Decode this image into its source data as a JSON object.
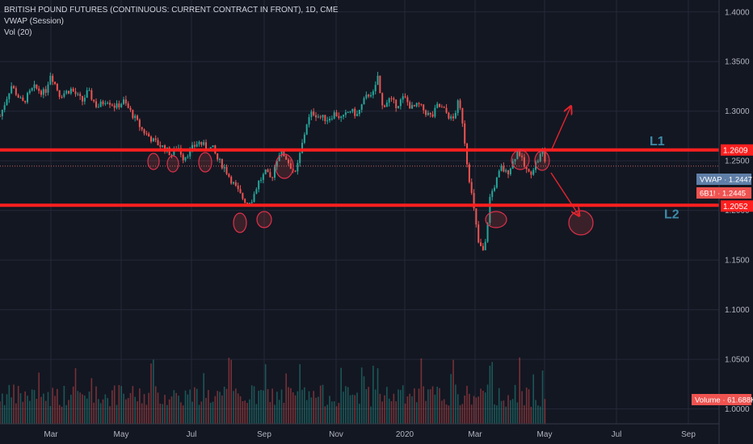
{
  "legend": {
    "title": "BRITISH POUND FUTURES (CONTINUOUS: CURRENT CONTRACT IN FRONT), 1D, CME",
    "indicator1": "VWAP (Session)",
    "indicator2": "Vol (20)"
  },
  "chart_data": {
    "type": "candlestick",
    "y_axis": {
      "ticks": [
        "1.4000",
        "1.3500",
        "1.3000",
        "1.2500",
        "1.2000",
        "1.1500",
        "1.1000",
        "1.0500",
        "1.0000"
      ],
      "range": [
        0.985,
        1.412
      ],
      "position": "right"
    },
    "x_axis": {
      "ticks": [
        "Mar",
        "May",
        "Jul",
        "Sep",
        "Nov",
        "2020",
        "Mar",
        "May",
        "Jul",
        "Sep"
      ]
    },
    "horizontal_levels": [
      {
        "name": "L1",
        "value": 1.2609,
        "tag": "1.2609"
      },
      {
        "name": "L2",
        "value": 1.2052,
        "tag": "1.2052"
      }
    ],
    "price_tags": [
      {
        "label": "VWAP",
        "value": "1.2447"
      },
      {
        "label": "6B1!",
        "value": "1.2445"
      },
      {
        "label": "Volume",
        "value": "61.688K"
      }
    ],
    "series_keypoints": [
      [
        0,
        1.295
      ],
      [
        0.03,
        1.326
      ],
      [
        0.06,
        1.308
      ],
      [
        0.09,
        1.324
      ],
      [
        0.12,
        1.318
      ],
      [
        0.135,
        1.338
      ],
      [
        0.16,
        1.316
      ],
      [
        0.19,
        1.322
      ],
      [
        0.22,
        1.31
      ],
      [
        0.235,
        1.32
      ],
      [
        0.26,
        1.304
      ],
      [
        0.285,
        1.312
      ],
      [
        0.31,
        1.304
      ],
      [
        0.33,
        1.31
      ],
      [
        0.355,
        1.296
      ],
      [
        0.38,
        1.281
      ],
      [
        0.41,
        1.27
      ],
      [
        0.435,
        1.264
      ],
      [
        0.46,
        1.256
      ],
      [
        0.475,
        1.265
      ],
      [
        0.49,
        1.253
      ],
      [
        0.515,
        1.263
      ],
      [
        0.53,
        1.269
      ],
      [
        0.55,
        1.264
      ],
      [
        0.57,
        1.262
      ],
      [
        0.58,
        1.252
      ],
      [
        0.6,
        1.243
      ],
      [
        0.625,
        1.226
      ],
      [
        0.645,
        1.214
      ],
      [
        0.66,
        1.208
      ],
      [
        0.675,
        1.212
      ],
      [
        0.69,
        1.228
      ],
      [
        0.71,
        1.238
      ],
      [
        0.725,
        1.231
      ],
      [
        0.735,
        1.245
      ],
      [
        0.745,
        1.258
      ],
      [
        0.76,
        1.256
      ],
      [
        0.775,
        1.246
      ],
      [
        0.79,
        1.236
      ],
      [
        0.805,
        1.262
      ],
      [
        0.82,
        1.288
      ],
      [
        0.835,
        1.299
      ],
      [
        0.855,
        1.294
      ],
      [
        0.875,
        1.292
      ],
      [
        0.895,
        1.298
      ],
      [
        0.915,
        1.292
      ],
      [
        0.935,
        1.301
      ],
      [
        0.955,
        1.296
      ],
      [
        0.975,
        1.312
      ],
      [
        0.99,
        1.319
      ],
      [
        1.0,
        1.317
      ],
      [
        1.01,
        1.336
      ],
      [
        1.02,
        1.304
      ],
      [
        1.04,
        1.312
      ],
      [
        1.06,
        1.306
      ],
      [
        1.08,
        1.314
      ],
      [
        1.1,
        1.303
      ],
      [
        1.12,
        1.306
      ],
      [
        1.14,
        1.298
      ],
      [
        1.155,
        1.294
      ],
      [
        1.17,
        1.306
      ],
      [
        1.19,
        1.3
      ],
      [
        1.21,
        1.29
      ],
      [
        1.225,
        1.309
      ],
      [
        1.235,
        1.294
      ],
      [
        1.25,
        1.244
      ],
      [
        1.265,
        1.205
      ],
      [
        1.28,
        1.165
      ],
      [
        1.295,
        1.157
      ],
      [
        1.31,
        1.214
      ],
      [
        1.325,
        1.228
      ],
      [
        1.34,
        1.243
      ],
      [
        1.355,
        1.237
      ],
      [
        1.37,
        1.248
      ],
      [
        1.385,
        1.262
      ],
      [
        1.4,
        1.245
      ],
      [
        1.415,
        1.236
      ],
      [
        1.43,
        1.246
      ],
      [
        1.44,
        1.252
      ],
      [
        1.45,
        1.26
      ],
      [
        1.46,
        1.245
      ]
    ]
  }
}
